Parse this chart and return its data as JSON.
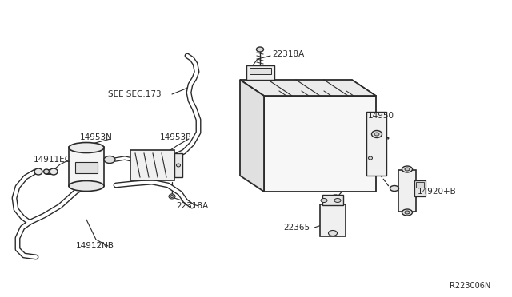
{
  "bg_color": "#ffffff",
  "line_color": "#2a2a2a",
  "text_color": "#2a2a2a",
  "fig_width": 6.4,
  "fig_height": 3.72,
  "dpi": 100,
  "labels": {
    "see_sec": "SEE SEC.173",
    "14953N": "14953N",
    "14953P": "14953P",
    "14911EC": "14911EC",
    "14912NB": "14912NB",
    "22318A_left": "22318A",
    "22318A_top": "22318A",
    "14950": "14950",
    "14920B": "14920+B",
    "22365": "22365",
    "diagram_id": "R223006N"
  }
}
